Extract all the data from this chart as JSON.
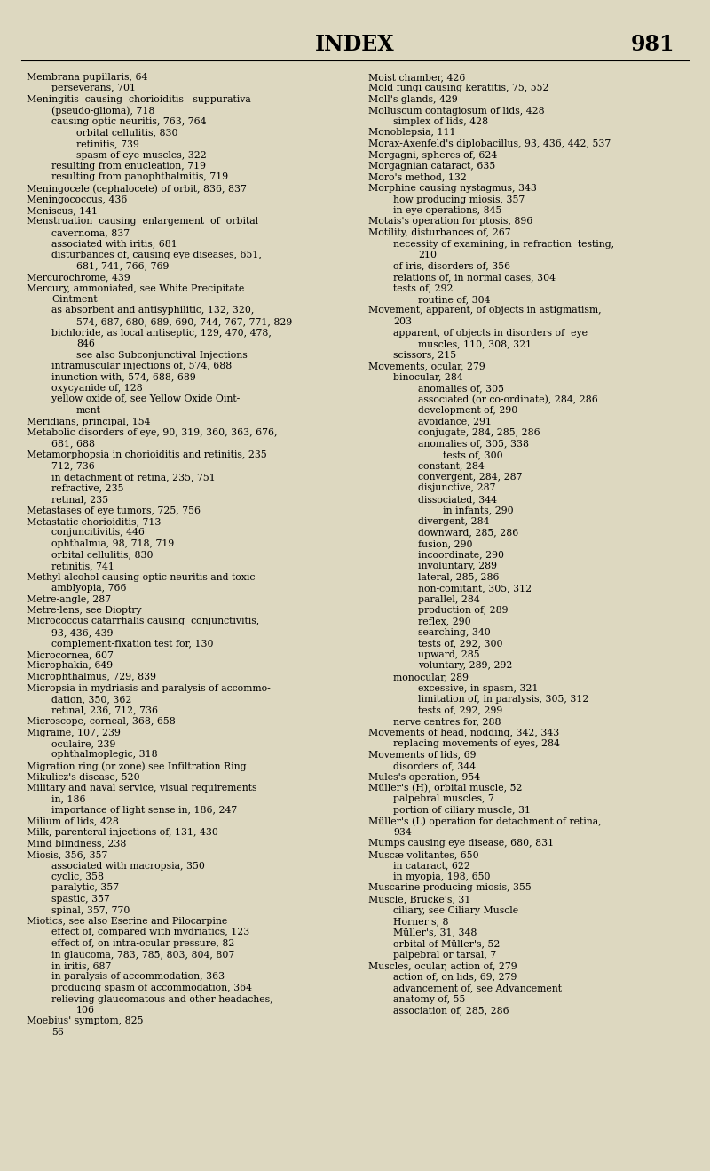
{
  "background_color": "#ddd8c0",
  "page_title": "INDEX",
  "page_number": "981",
  "title_fontsize": 17,
  "body_fontsize": 7.8,
  "left_entries": [
    [
      "Membrana pupillaris, 64",
      0
    ],
    [
      "perseverans, 701",
      1
    ],
    [
      "Meningitis  causing  chorioiditis   suppurativa",
      0
    ],
    [
      "(pseudo-glioma), 718",
      1
    ],
    [
      "causing optic neuritis, 763, 764",
      1
    ],
    [
      "orbital cellulitis, 830",
      2
    ],
    [
      "retinitis, 739",
      2
    ],
    [
      "spasm of eye muscles, 322",
      2
    ],
    [
      "resulting from enucleation, 719",
      1
    ],
    [
      "resulting from panophthalmitis, 719",
      1
    ],
    [
      "Meningocele (cephalocele) of orbit, 836, 837",
      0
    ],
    [
      "Meningococcus, 436",
      0
    ],
    [
      "Meniscus, 141",
      0
    ],
    [
      "Menstruation  causing  enlargement  of  orbital",
      0
    ],
    [
      "cavernoma, 837",
      1
    ],
    [
      "associated with iritis, 681",
      1
    ],
    [
      "disturbances of, causing eye diseases, 651,",
      1
    ],
    [
      "681, 741, 766, 769",
      2
    ],
    [
      "Mercurochrome, 439",
      0
    ],
    [
      "Mercury, ammoniated, see White Precipitate",
      0
    ],
    [
      "Ointment",
      1
    ],
    [
      "as absorbent and antisyphilitic, 132, 320,",
      1
    ],
    [
      "574, 687, 680, 689, 690, 744, 767, 771, 829",
      2
    ],
    [
      "bichloride, as local antiseptic, 129, 470, 478,",
      1
    ],
    [
      "846",
      2
    ],
    [
      "see also Subconjunctival Injections",
      2
    ],
    [
      "intramuscular injections of, 574, 688",
      1
    ],
    [
      "inunction with, 574, 688, 689",
      1
    ],
    [
      "oxycyanide of, 128",
      1
    ],
    [
      "yellow oxide of, see Yellow Oxide Oint-",
      1
    ],
    [
      "ment",
      2
    ],
    [
      "Meridians, principal, 154",
      0
    ],
    [
      "Metabolic disorders of eye, 90, 319, 360, 363, 676,",
      0
    ],
    [
      "681, 688",
      1
    ],
    [
      "Metamorphopsia in chorioiditis and retinitis, 235",
      0
    ],
    [
      "712, 736",
      1
    ],
    [
      "in detachment of retina, 235, 751",
      1
    ],
    [
      "refractive, 235",
      1
    ],
    [
      "retinal, 235",
      1
    ],
    [
      "Metastases of eye tumors, 725, 756",
      0
    ],
    [
      "Metastatic chorioiditis, 713",
      0
    ],
    [
      "conjuncitivitis, 446",
      1
    ],
    [
      "ophthalmia, 98, 718, 719",
      1
    ],
    [
      "orbital cellulitis, 830",
      1
    ],
    [
      "retinitis, 741",
      1
    ],
    [
      "Methyl alcohol causing optic neuritis and toxic",
      0
    ],
    [
      "amblyopia, 766",
      1
    ],
    [
      "Metre-angle, 287",
      0
    ],
    [
      "Metre-lens, see Dioptry",
      0
    ],
    [
      "Micrococcus catarrhalis causing  conjunctivitis,",
      0
    ],
    [
      "93, 436, 439",
      1
    ],
    [
      "complement-fixation test for, 130",
      1
    ],
    [
      "Microcornea, 607",
      0
    ],
    [
      "Microphakia, 649",
      0
    ],
    [
      "Microphthalmus, 729, 839",
      0
    ],
    [
      "Micropsia in mydriasis and paralysis of accommo-",
      0
    ],
    [
      "dation, 350, 362",
      1
    ],
    [
      "retinal, 236, 712, 736",
      1
    ],
    [
      "Microscope, corneal, 368, 658",
      0
    ],
    [
      "Migraine, 107, 239",
      0
    ],
    [
      "oculaire, 239",
      1
    ],
    [
      "ophthalmoplegic, 318",
      1
    ],
    [
      "Migration ring (or zone) see Infiltration Ring",
      0
    ],
    [
      "Mikulicz's disease, 520",
      0
    ],
    [
      "Military and naval service, visual requirements",
      0
    ],
    [
      "in, 186",
      1
    ],
    [
      "importance of light sense in, 186, 247",
      1
    ],
    [
      "Milium of lids, 428",
      0
    ],
    [
      "Milk, parenteral injections of, 131, 430",
      0
    ],
    [
      "Mind blindness, 238",
      0
    ],
    [
      "Miosis, 356, 357",
      0
    ],
    [
      "associated with macropsia, 350",
      1
    ],
    [
      "cyclic, 358",
      1
    ],
    [
      "paralytic, 357",
      1
    ],
    [
      "spastic, 357",
      1
    ],
    [
      "spinal, 357, 770",
      1
    ],
    [
      "Miotics, see also Eserine and Pilocarpine",
      0
    ],
    [
      "effect of, compared with mydriatics, 123",
      1
    ],
    [
      "effect of, on intra-ocular pressure, 82",
      1
    ],
    [
      "in glaucoma, 783, 785, 803, 804, 807",
      1
    ],
    [
      "in iritis, 687",
      1
    ],
    [
      "in paralysis of accommodation, 363",
      1
    ],
    [
      "producing spasm of accommodation, 364",
      1
    ],
    [
      "relieving glaucomatous and other headaches,",
      1
    ],
    [
      "106",
      2
    ],
    [
      "Moebius' symptom, 825",
      0
    ],
    [
      "56",
      1
    ]
  ],
  "right_entries": [
    [
      "Moist chamber, 426",
      0
    ],
    [
      "Mold fungi causing keratitis, 75, 552",
      0
    ],
    [
      "Moll's glands, 429",
      0
    ],
    [
      "Molluscum contagiosum of lids, 428",
      0
    ],
    [
      "simplex of lids, 428",
      1
    ],
    [
      "Monoblepsia, 111",
      0
    ],
    [
      "Morax-Axenfeld's diplobacillus, 93, 436, 442, 537",
      0
    ],
    [
      "Morgagni, spheres of, 624",
      0
    ],
    [
      "Morgagnian cataract, 635",
      0
    ],
    [
      "Moro's method, 132",
      0
    ],
    [
      "Morphine causing nystagmus, 343",
      0
    ],
    [
      "how producing miosis, 357",
      1
    ],
    [
      "in eye operations, 845",
      1
    ],
    [
      "Motais's operation for ptosis, 896",
      0
    ],
    [
      "Motility, disturbances of, 267",
      0
    ],
    [
      "necessity of examining, in refraction  testing,",
      1
    ],
    [
      "210",
      2
    ],
    [
      "of iris, disorders of, 356",
      1
    ],
    [
      "relations of, in normal cases, 304",
      1
    ],
    [
      "tests of, 292",
      1
    ],
    [
      "routine of, 304",
      2
    ],
    [
      "Movement, apparent, of objects in astigmatism,",
      0
    ],
    [
      "203",
      1
    ],
    [
      "apparent, of objects in disorders of  eye",
      1
    ],
    [
      "muscles, 110, 308, 321",
      2
    ],
    [
      "scissors, 215",
      1
    ],
    [
      "Movements, ocular, 279",
      0
    ],
    [
      "binocular, 284",
      1
    ],
    [
      "anomalies of, 305",
      2
    ],
    [
      "associated (or co-ordinate), 284, 286",
      2
    ],
    [
      "development of, 290",
      2
    ],
    [
      "avoidance, 291",
      2
    ],
    [
      "conjugate, 284, 285, 286",
      2
    ],
    [
      "anomalies of, 305, 338",
      2
    ],
    [
      "tests of, 300",
      3
    ],
    [
      "constant, 284",
      2
    ],
    [
      "convergent, 284, 287",
      2
    ],
    [
      "disjunctive, 287",
      2
    ],
    [
      "dissociated, 344",
      2
    ],
    [
      "in infants, 290",
      3
    ],
    [
      "divergent, 284",
      2
    ],
    [
      "downward, 285, 286",
      2
    ],
    [
      "fusion, 290",
      2
    ],
    [
      "incoordinate, 290",
      2
    ],
    [
      "involuntary, 289",
      2
    ],
    [
      "lateral, 285, 286",
      2
    ],
    [
      "non-comitant, 305, 312",
      2
    ],
    [
      "parallel, 284",
      2
    ],
    [
      "production of, 289",
      2
    ],
    [
      "reflex, 290",
      2
    ],
    [
      "searching, 340",
      2
    ],
    [
      "tests of, 292, 300",
      2
    ],
    [
      "upward, 285",
      2
    ],
    [
      "voluntary, 289, 292",
      2
    ],
    [
      "monocular, 289",
      1
    ],
    [
      "excessive, in spasm, 321",
      2
    ],
    [
      "limitation of, in paralysis, 305, 312",
      2
    ],
    [
      "tests of, 292, 299",
      2
    ],
    [
      "nerve centres for, 288",
      1
    ],
    [
      "Movements of head, nodding, 342, 343",
      0
    ],
    [
      "replacing movements of eyes, 284",
      1
    ],
    [
      "Movements of lids, 69",
      0
    ],
    [
      "disorders of, 344",
      1
    ],
    [
      "Mules's operation, 954",
      0
    ],
    [
      "Müller's (H), orbital muscle, 52",
      0
    ],
    [
      "palpebral muscles, 7",
      1
    ],
    [
      "portion of ciliary muscle, 31",
      1
    ],
    [
      "Müller's (L) operation for detachment of retina,",
      0
    ],
    [
      "934",
      1
    ],
    [
      "Mumps causing eye disease, 680, 831",
      0
    ],
    [
      "Muscæ volitantes, 650",
      0
    ],
    [
      "in cataract, 622",
      1
    ],
    [
      "in myopia, 198, 650",
      1
    ],
    [
      "Muscarine producing miosis, 355",
      0
    ],
    [
      "Muscle, Brücke's, 31",
      0
    ],
    [
      "ciliary, see Ciliary Muscle",
      1
    ],
    [
      "Horner's, 8",
      1
    ],
    [
      "Müller's, 31, 348",
      1
    ],
    [
      "orbital of Müller's, 52",
      1
    ],
    [
      "palpebral or tarsal, 7",
      1
    ],
    [
      "Muscles, ocular, action of, 279",
      0
    ],
    [
      "action of, on lids, 69, 279",
      1
    ],
    [
      "advancement of, see Advancement",
      1
    ],
    [
      "anatomy of, 55",
      1
    ],
    [
      "association of, 285, 286",
      1
    ]
  ],
  "smallcaps_keywords": [
    "White Precipitate",
    "Ointment",
    "Subconjunctival Injections",
    "Yellow Oxide Oint",
    "ment",
    "Dioptry",
    "Infiltration Ring",
    "Eserine",
    "Pilocarpine",
    "Ciliary Muscle",
    "Advancement"
  ]
}
